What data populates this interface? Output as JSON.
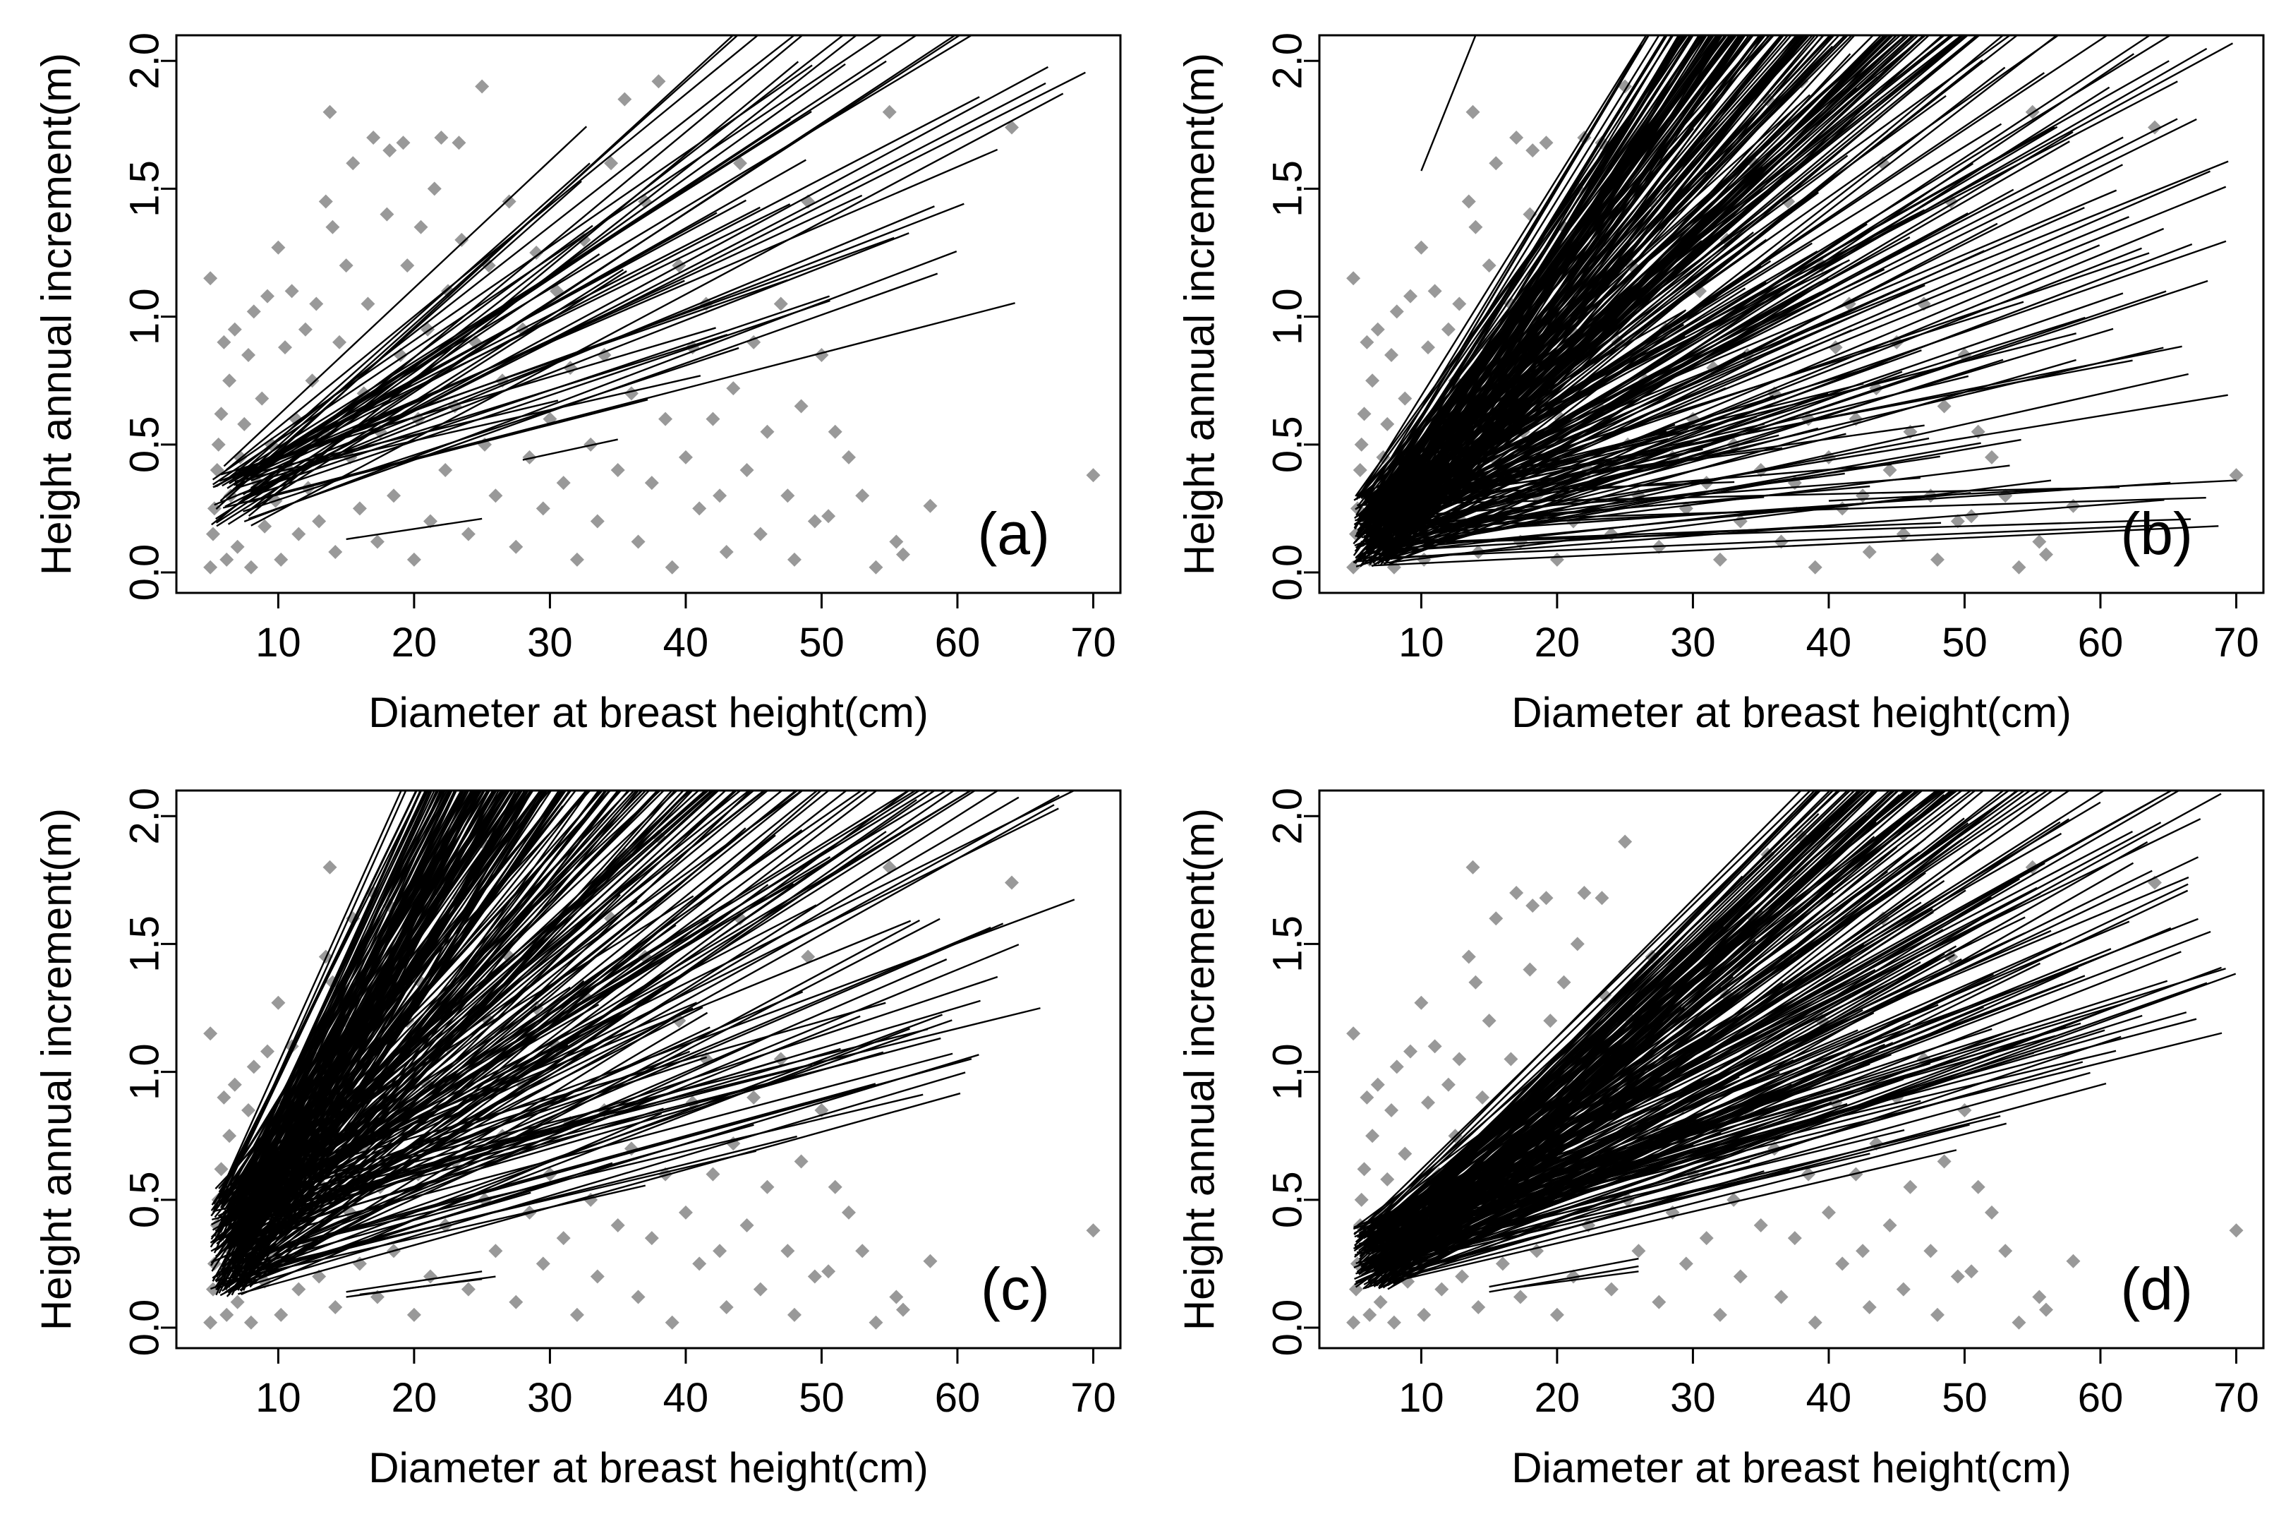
{
  "chart_data": [
    {
      "type": "scatter",
      "panel_label": "(a)",
      "title": "",
      "xlabel": "Diameter at breast height(cm)",
      "ylabel": "Height annual increment(m)",
      "xlim": [
        2.5,
        72
      ],
      "ylim": [
        -0.08,
        2.1
      ],
      "xticks": [
        10,
        20,
        30,
        40,
        50,
        60,
        70
      ],
      "yticks": [
        0.0,
        0.5,
        1.0,
        1.5,
        2.0
      ],
      "xtick_labels": [
        "10",
        "20",
        "30",
        "40",
        "50",
        "60",
        "70"
      ],
      "ytick_labels": [
        "0.0",
        "0.5",
        "1.0",
        "1.5",
        "2.0"
      ],
      "point_color": "#999999",
      "line_color": "#000000",
      "grid": false,
      "fit_lines": {
        "count": 55,
        "x_start": [
          5,
          8
        ],
        "x_end": [
          28,
          70
        ],
        "y_start": [
          0.18,
          0.42
        ],
        "slope": [
          0.012,
          0.05
        ],
        "extra_lines": [
          {
            "x": [
              15,
              25
            ],
            "y": [
              0.13,
              0.21
            ]
          },
          {
            "x": [
              28,
              35
            ],
            "y": [
              0.44,
              0.52
            ]
          }
        ]
      }
    },
    {
      "type": "scatter",
      "panel_label": "(b)",
      "title": "",
      "xlabel": "Diameter at breast height(cm)",
      "ylabel": "Height annual increment(m)",
      "xlim": [
        2.5,
        72
      ],
      "ylim": [
        -0.08,
        2.1
      ],
      "xticks": [
        10,
        20,
        30,
        40,
        50,
        60,
        70
      ],
      "yticks": [
        0.0,
        0.5,
        1.0,
        1.5,
        2.0
      ],
      "xtick_labels": [
        "10",
        "20",
        "30",
        "40",
        "50",
        "60",
        "70"
      ],
      "ytick_labels": [
        "0.0",
        "0.5",
        "1.0",
        "1.5",
        "2.0"
      ],
      "point_color": "#999999",
      "line_color": "#000000",
      "grid": false,
      "fit_lines": {
        "count": 320,
        "x_start": [
          5,
          8
        ],
        "x_end": [
          25,
          70
        ],
        "y_start": [
          0.02,
          0.3
        ],
        "slope": [
          0.001,
          0.09
        ],
        "extra_lines": [
          {
            "x": [
              10,
              14
            ],
            "y": [
              1.57,
              2.1
            ]
          },
          {
            "x": [
              7,
              35
            ],
            "y": [
              0.2,
              1.2
            ]
          },
          {
            "x": [
              40,
              70
            ],
            "y": [
              0.28,
              0.36
            ]
          }
        ]
      }
    },
    {
      "type": "scatter",
      "panel_label": "(c)",
      "title": "",
      "xlabel": "Diameter at breast height(cm)",
      "ylabel": "Height annual increment(m)",
      "xlim": [
        2.5,
        72
      ],
      "ylim": [
        -0.08,
        2.1
      ],
      "xticks": [
        10,
        20,
        30,
        40,
        50,
        60,
        70
      ],
      "yticks": [
        0.0,
        0.5,
        1.0,
        1.5,
        2.0
      ],
      "xtick_labels": [
        "10",
        "20",
        "30",
        "40",
        "50",
        "60",
        "70"
      ],
      "ytick_labels": [
        "0.0",
        "0.5",
        "1.0",
        "1.5",
        "2.0"
      ],
      "point_color": "#999999",
      "line_color": "#000000",
      "grid": false,
      "fit_lines": {
        "count": 300,
        "x_start": [
          5,
          8
        ],
        "x_end": [
          28,
          70
        ],
        "y_start": [
          0.12,
          0.55
        ],
        "slope": [
          0.012,
          0.12
        ],
        "extra_lines": [
          {
            "x": [
              15,
              26
            ],
            "y": [
              0.12,
              0.2
            ]
          },
          {
            "x": [
              15,
              25
            ],
            "y": [
              0.14,
              0.22
            ]
          },
          {
            "x": [
              16,
              25
            ],
            "y": [
              0.13,
              0.19
            ]
          }
        ]
      }
    },
    {
      "type": "scatter",
      "panel_label": "(d)",
      "title": "",
      "xlabel": "Diameter at breast height(cm)",
      "ylabel": "Height annual increment(m)",
      "xlim": [
        2.5,
        72
      ],
      "ylim": [
        -0.08,
        2.1
      ],
      "xticks": [
        10,
        20,
        30,
        40,
        50,
        60,
        70
      ],
      "yticks": [
        0.0,
        0.5,
        1.0,
        1.5,
        2.0
      ],
      "xtick_labels": [
        "10",
        "20",
        "30",
        "40",
        "50",
        "60",
        "70"
      ],
      "ytick_labels": [
        "0.0",
        "0.5",
        "1.0",
        "1.5",
        "2.0"
      ],
      "point_color": "#999999",
      "line_color": "#000000",
      "grid": false,
      "fit_lines": {
        "count": 260,
        "x_start": [
          5,
          8
        ],
        "x_end": [
          28,
          70
        ],
        "y_start": [
          0.15,
          0.4
        ],
        "slope": [
          0.012,
          0.055
        ],
        "extra_lines": [
          {
            "x": [
              15,
              26
            ],
            "y": [
              0.14,
              0.24
            ]
          },
          {
            "x": [
              15,
              26
            ],
            "y": [
              0.16,
              0.27
            ]
          },
          {
            "x": [
              16,
              26
            ],
            "y": [
              0.15,
              0.22
            ]
          }
        ]
      }
    }
  ],
  "observations": {
    "description": "Shared scatter of observed tree measurements (DBH cm, height increment m), reproduced in every panel",
    "points": [
      [
        5,
        0.02
      ],
      [
        5.2,
        0.15
      ],
      [
        5.3,
        0.25
      ],
      [
        5.5,
        0.4
      ],
      [
        5.6,
        0.5
      ],
      [
        5.8,
        0.62
      ],
      [
        6,
        0.9
      ],
      [
        5,
        1.15
      ],
      [
        6.2,
        0.05
      ],
      [
        6.5,
        0.3
      ],
      [
        6.4,
        0.75
      ],
      [
        6.8,
        0.95
      ],
      [
        7,
        0.1
      ],
      [
        7.2,
        0.45
      ],
      [
        7.5,
        0.58
      ],
      [
        7.8,
        0.85
      ],
      [
        8,
        0.02
      ],
      [
        8.2,
        1.02
      ],
      [
        8.5,
        0.35
      ],
      [
        8.8,
        0.68
      ],
      [
        9,
        0.18
      ],
      [
        9.2,
        1.08
      ],
      [
        9.5,
        0.5
      ],
      [
        9.8,
        0.28
      ],
      [
        10,
        1.27
      ],
      [
        10.2,
        0.05
      ],
      [
        10.5,
        0.88
      ],
      [
        10.8,
        0.4
      ],
      [
        11,
        1.1
      ],
      [
        11.3,
        0.6
      ],
      [
        11.5,
        0.15
      ],
      [
        12,
        0.95
      ],
      [
        12.2,
        0.33
      ],
      [
        12.5,
        0.75
      ],
      [
        12.8,
        1.05
      ],
      [
        13,
        0.2
      ],
      [
        13.3,
        0.55
      ],
      [
        13.5,
        1.45
      ],
      [
        13.8,
        1.8
      ],
      [
        14,
        1.35
      ],
      [
        14.2,
        0.08
      ],
      [
        14.5,
        0.9
      ],
      [
        15,
        1.2
      ],
      [
        15.3,
        0.45
      ],
      [
        15.5,
        1.6
      ],
      [
        16,
        0.25
      ],
      [
        16.3,
        0.7
      ],
      [
        16.6,
        1.05
      ],
      [
        17,
        1.7
      ],
      [
        17.3,
        0.12
      ],
      [
        17.5,
        0.55
      ],
      [
        18,
        1.4
      ],
      [
        18.2,
        1.65
      ],
      [
        18.5,
        0.3
      ],
      [
        19,
        0.85
      ],
      [
        19.2,
        1.68
      ],
      [
        19.5,
        1.2
      ],
      [
        20,
        0.05
      ],
      [
        20.3,
        0.6
      ],
      [
        20.5,
        1.35
      ],
      [
        21,
        0.95
      ],
      [
        21.2,
        0.2
      ],
      [
        21.5,
        1.5
      ],
      [
        22,
        1.7
      ],
      [
        22.3,
        0.4
      ],
      [
        22.5,
        1.1
      ],
      [
        23,
        0.65
      ],
      [
        23.3,
        1.68
      ],
      [
        23.5,
        1.3
      ],
      [
        24,
        0.15
      ],
      [
        24.5,
        0.9
      ],
      [
        25,
        1.9
      ],
      [
        25.2,
        0.5
      ],
      [
        25.5,
        1.2
      ],
      [
        26,
        0.3
      ],
      [
        26.5,
        0.75
      ],
      [
        27,
        1.45
      ],
      [
        27.5,
        0.1
      ],
      [
        28,
        0.95
      ],
      [
        28.5,
        0.45
      ],
      [
        29,
        1.25
      ],
      [
        29.5,
        0.25
      ],
      [
        30,
        0.6
      ],
      [
        30.5,
        1.1
      ],
      [
        31,
        0.35
      ],
      [
        31.5,
        0.8
      ],
      [
        32,
        0.05
      ],
      [
        32.5,
        1.3
      ],
      [
        33,
        0.5
      ],
      [
        33.5,
        0.2
      ],
      [
        34,
        0.85
      ],
      [
        34.5,
        1.6
      ],
      [
        35,
        0.4
      ],
      [
        35.5,
        1.85
      ],
      [
        36,
        0.7
      ],
      [
        36.5,
        0.12
      ],
      [
        37,
        1.45
      ],
      [
        37.5,
        0.35
      ],
      [
        38,
        1.92
      ],
      [
        38.5,
        0.6
      ],
      [
        39,
        0.02
      ],
      [
        39.5,
        1.2
      ],
      [
        40,
        0.45
      ],
      [
        40.5,
        0.88
      ],
      [
        41,
        0.25
      ],
      [
        41.5,
        1.05
      ],
      [
        42,
        0.6
      ],
      [
        42.5,
        0.3
      ],
      [
        43,
        0.08
      ],
      [
        43.5,
        0.72
      ],
      [
        44,
        1.6
      ],
      [
        44.5,
        0.4
      ],
      [
        45,
        0.9
      ],
      [
        45.5,
        0.15
      ],
      [
        46,
        0.55
      ],
      [
        47,
        1.05
      ],
      [
        47.5,
        0.3
      ],
      [
        48,
        0.05
      ],
      [
        48.5,
        0.65
      ],
      [
        49,
        1.45
      ],
      [
        49.5,
        0.2
      ],
      [
        50,
        0.85
      ],
      [
        50.5,
        0.22
      ],
      [
        51,
        0.55
      ],
      [
        52,
        0.45
      ],
      [
        53,
        0.3
      ],
      [
        54,
        0.02
      ],
      [
        55,
        1.8
      ],
      [
        55.5,
        0.12
      ],
      [
        56,
        0.07
      ],
      [
        58,
        0.26
      ],
      [
        64,
        1.74
      ],
      [
        70,
        0.38
      ]
    ]
  }
}
